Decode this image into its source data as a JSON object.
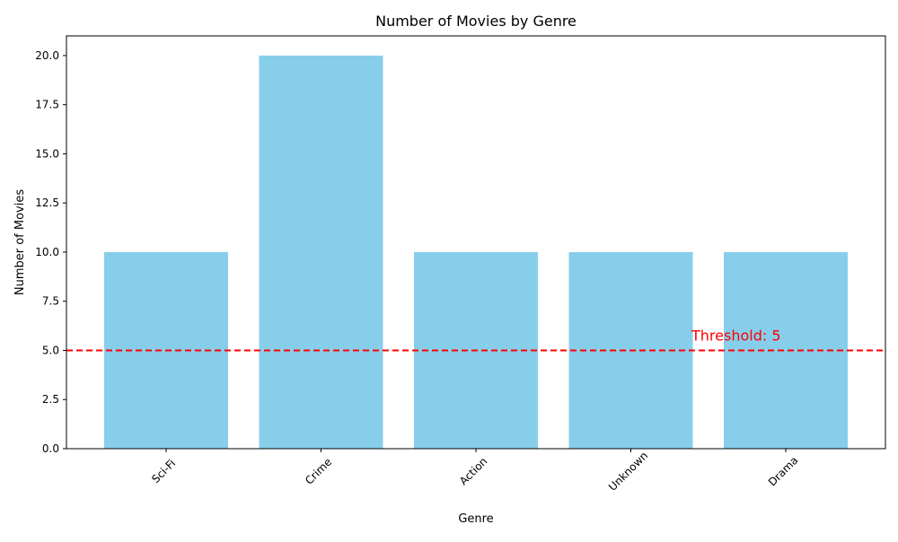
{
  "chart_data": {
    "type": "bar",
    "title": "Number of Movies by Genre",
    "xlabel": "Genre",
    "ylabel": "Number of Movies",
    "categories": [
      "Sci-Fi",
      "Crime",
      "Action",
      "Unknown",
      "Drama"
    ],
    "values": [
      10,
      20,
      10,
      10,
      10
    ],
    "ylim": [
      0,
      21
    ],
    "yticks": [
      "0.0",
      "2.5",
      "5.0",
      "7.5",
      "10.0",
      "12.5",
      "15.0",
      "17.5",
      "20.0"
    ],
    "grid": false,
    "threshold": {
      "value": 5,
      "label": "Threshold: 5",
      "color": "#ff0000",
      "style": "dashed"
    },
    "colors": {
      "bar": "#87ceeb",
      "axis": "#000000"
    }
  }
}
